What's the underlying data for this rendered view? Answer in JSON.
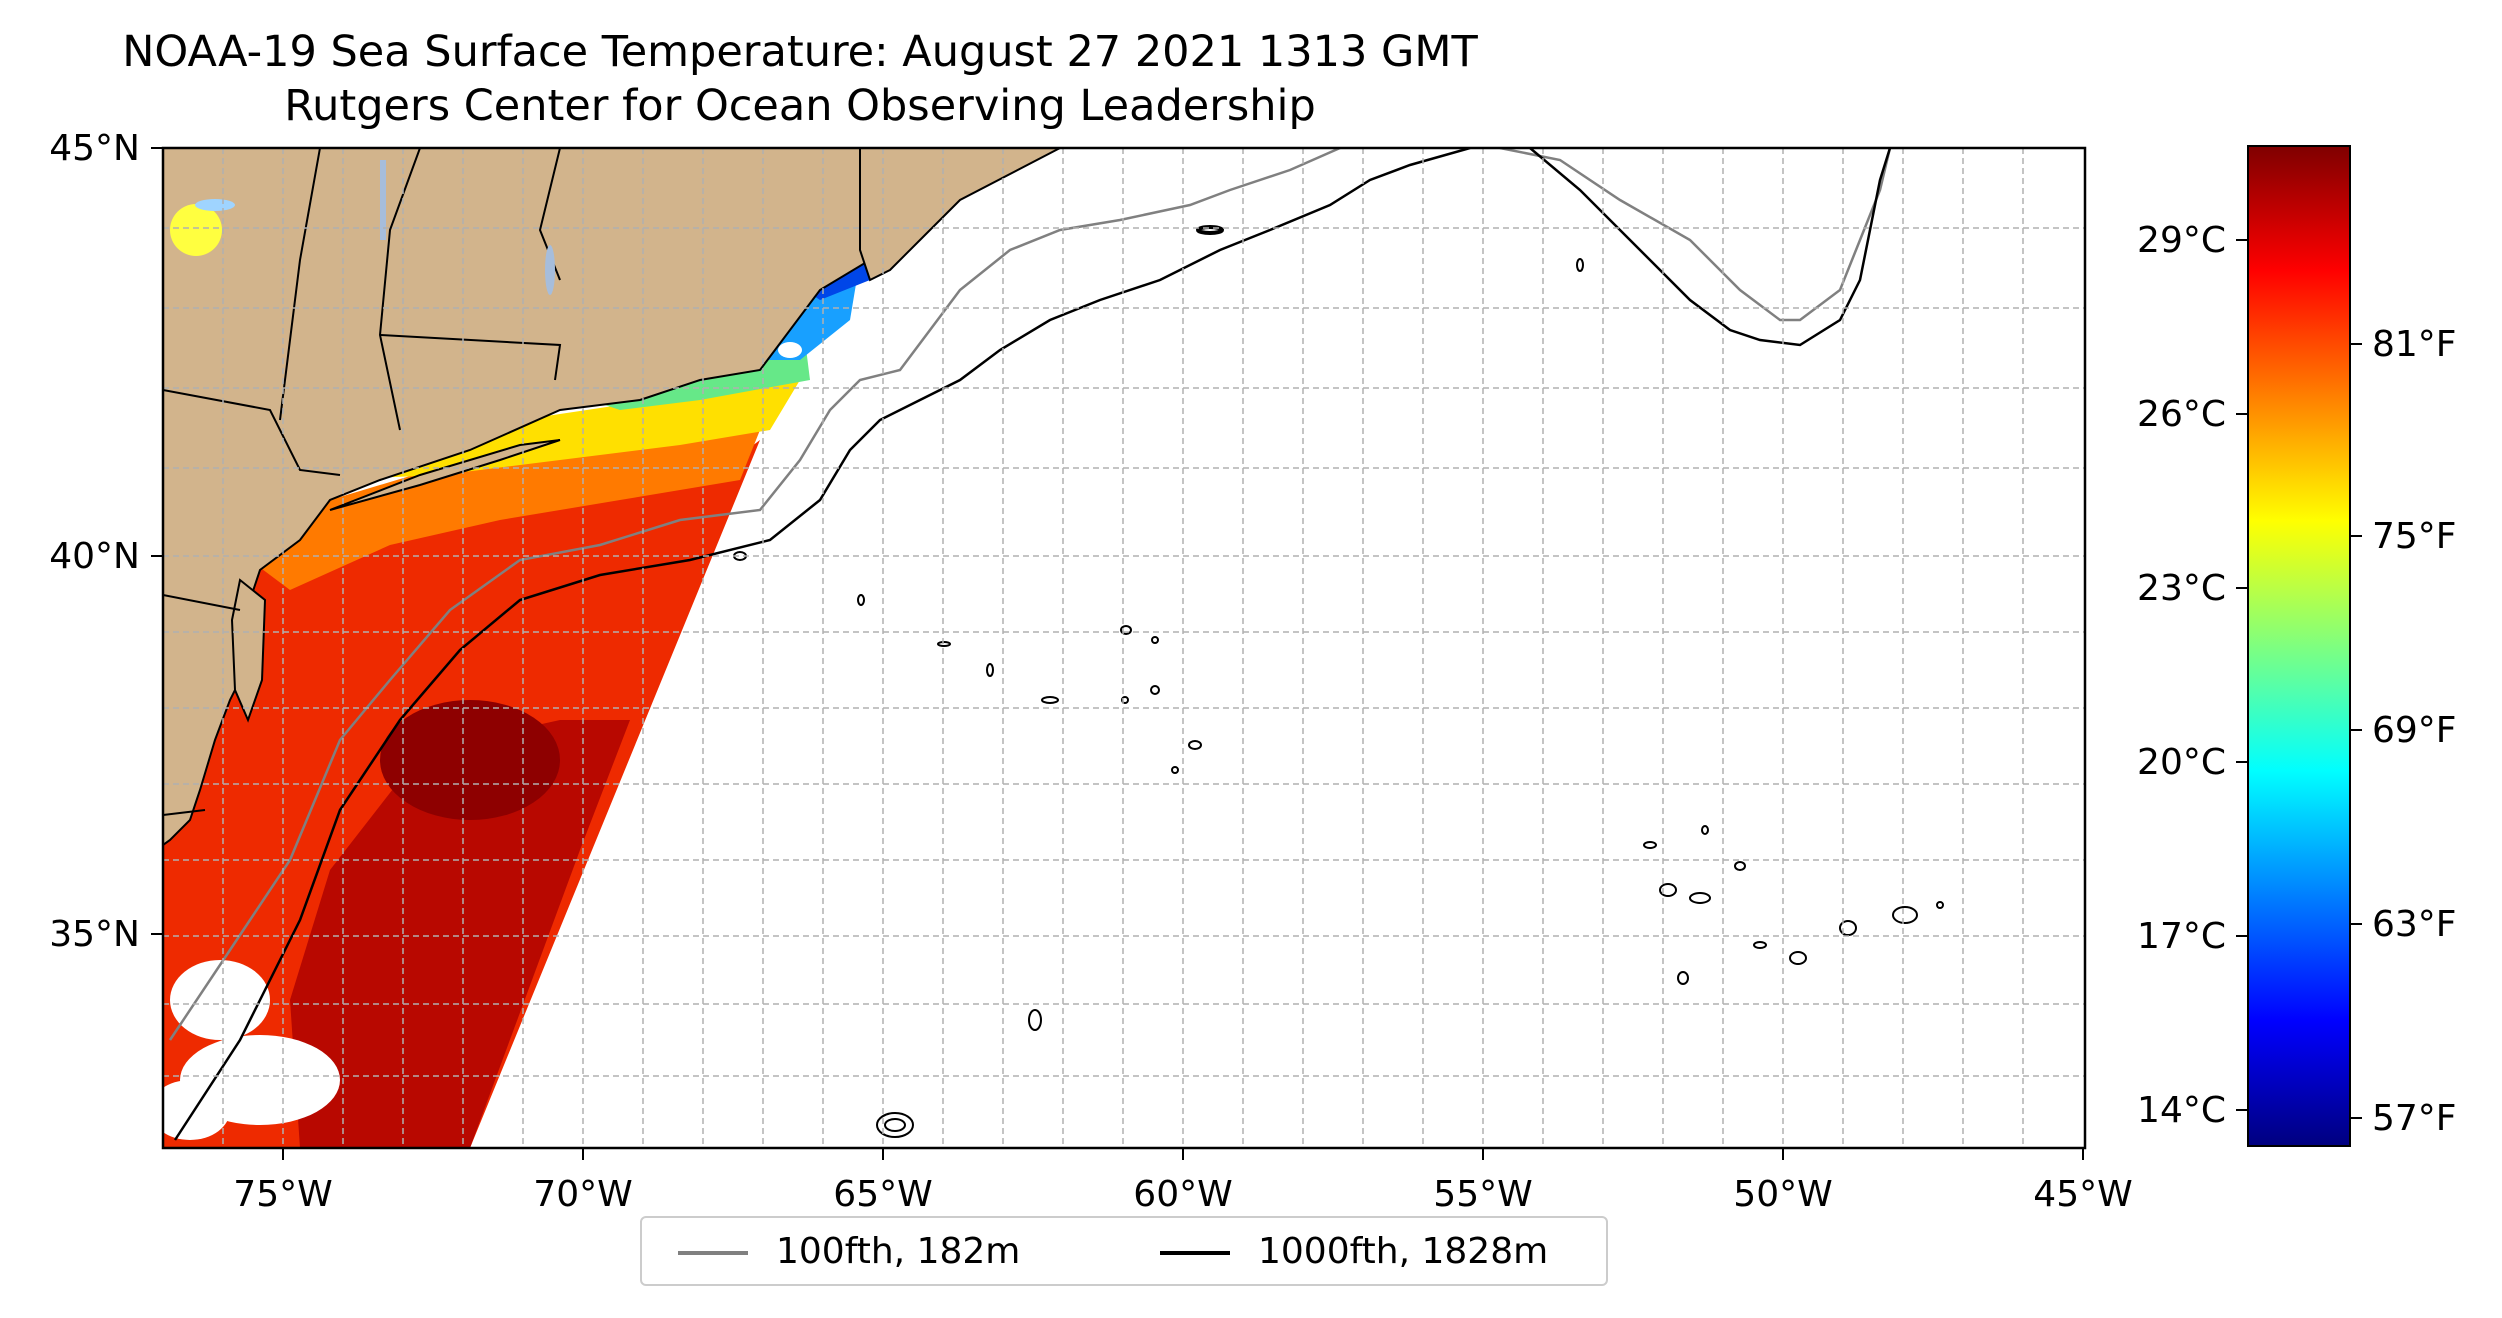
{
  "title": "NOAA-19 Sea Surface Temperature: August 27 2021 1313 GMT",
  "subtitle": "Rutgers Center for Ocean Observing Leadership",
  "map": {
    "lon_range": [
      -77,
      -45
    ],
    "lat_range": [
      32.5,
      45
    ],
    "lat_labels": [
      "45°N",
      "40°N",
      "35°N"
    ],
    "lon_labels": [
      "75°W",
      "70°W",
      "65°W",
      "60°W",
      "55°W",
      "50°W",
      "45°W"
    ],
    "land_color": "#d2b48c",
    "lake_color": "#a6bddb",
    "gridlines": "dashed"
  },
  "colorbar": {
    "colormap": "jet",
    "celsius_labels": [
      "29°C",
      "26°C",
      "23°C",
      "20°C",
      "17°C",
      "14°C"
    ],
    "fahrenheit_labels": [
      "81°F",
      "75°F",
      "69°F",
      "63°F",
      "57°F"
    ],
    "stops": [
      "#00007f",
      "#0000ff",
      "#007fff",
      "#00ffff",
      "#7fff7f",
      "#ffff00",
      "#ff7f00",
      "#ff0000",
      "#7f0000"
    ]
  },
  "legend": {
    "items": [
      {
        "label": "100fth, 182m",
        "color": "#808080"
      },
      {
        "label": "1000fth, 1828m",
        "color": "#000000"
      }
    ]
  }
}
